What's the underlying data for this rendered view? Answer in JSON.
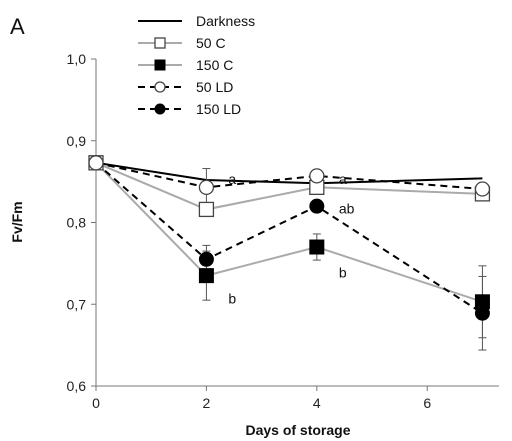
{
  "chart_data": {
    "type": "line",
    "panel_label": "A",
    "xlabel": "Days of storage",
    "ylabel": "Fv/Fm",
    "xlim": [
      0,
      7.3
    ],
    "ylim": [
      0.6,
      1.0
    ],
    "xticks": [
      "0",
      "2",
      "4",
      "6"
    ],
    "yticks": [
      "0,6",
      "0,7",
      "0,8",
      "0,9",
      "1,0"
    ],
    "legend_position": "top-left",
    "x": [
      0,
      2,
      4,
      7
    ],
    "series": [
      {
        "name": "Darkness",
        "values": [
          0.873,
          0.852,
          0.848,
          0.854
        ],
        "errors": [
          0.0,
          0.0,
          0.0,
          0.0
        ],
        "line": "solid",
        "color": "#000000",
        "marker": "none"
      },
      {
        "name": "50 C",
        "values": [
          0.873,
          0.816,
          0.843,
          0.835
        ],
        "errors": [
          0.006,
          0.008,
          0.006,
          0.005
        ],
        "line": "solid",
        "color": "#aaaaaa",
        "marker": "open-square"
      },
      {
        "name": "150 C",
        "values": [
          0.873,
          0.735,
          0.77,
          0.703
        ],
        "errors": [
          0.006,
          0.03,
          0.016,
          0.044
        ],
        "line": "solid",
        "color": "#aaaaaa",
        "marker": "filled-square"
      },
      {
        "name": "50 LD",
        "values": [
          0.873,
          0.843,
          0.857,
          0.841
        ],
        "errors": [
          0.006,
          0.023,
          0.007,
          0.004
        ],
        "line": "dashed",
        "color": "#000000",
        "marker": "open-circle"
      },
      {
        "name": "150 LD",
        "values": [
          0.873,
          0.755,
          0.82,
          0.689
        ],
        "errors": [
          0.006,
          0.017,
          0.006,
          0.045
        ],
        "line": "dashed",
        "color": "#000000",
        "marker": "filled-circle"
      }
    ],
    "annotations": [
      {
        "text": "a",
        "x": 2.0,
        "y": 0.853
      },
      {
        "text": "a",
        "x": 4.0,
        "y": 0.853
      },
      {
        "text": "ab",
        "x": 4.0,
        "y": 0.817
      },
      {
        "text": "b",
        "x": 2.0,
        "y": 0.707
      },
      {
        "text": "b",
        "x": 4.0,
        "y": 0.739
      }
    ]
  }
}
